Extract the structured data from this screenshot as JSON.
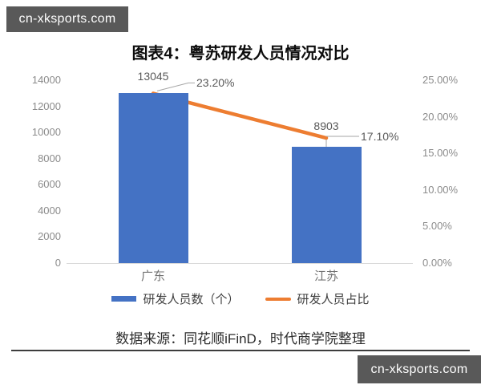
{
  "watermark_top": "cn-xksports.com",
  "watermark_bottom": "cn-xksports.com",
  "title": "图表4：粤苏研发人员情况对比",
  "source_note": "数据来源：同花顺iFinD，时代商学院整理",
  "colors": {
    "bar": "#4472C4",
    "line": "#ED7D31",
    "watermark_bg": "#595959",
    "axis_line": "#D9D9D9",
    "leader_line": "#A6A6A6",
    "tick_text": "#8C8C8C",
    "data_label_text": "#595959"
  },
  "legend": [
    {
      "label": "研发人员数（个）",
      "marker": "bar",
      "color": "#4472C4"
    },
    {
      "label": "研发人员占比",
      "marker": "line",
      "color": "#ED7D31"
    }
  ],
  "chart_data": {
    "type": "bar",
    "subtype": "bar+line combo, dual axis",
    "title": "图表4：粤苏研发人员情况对比",
    "categories": [
      "广东",
      "江苏"
    ],
    "series": [
      {
        "name": "研发人员数（个）",
        "type": "bar",
        "axis": "left",
        "values": [
          13045,
          8903
        ],
        "labels": [
          "13045",
          "8903"
        ]
      },
      {
        "name": "研发人员占比",
        "type": "line",
        "axis": "right",
        "values": [
          23.2,
          17.1
        ],
        "labels": [
          "23.20%",
          "17.10%"
        ]
      }
    ],
    "left_axis": {
      "min": 0,
      "max": 14000,
      "ticks": [
        "0",
        "2000",
        "4000",
        "6000",
        "8000",
        "10000",
        "12000",
        "14000"
      ]
    },
    "right_axis": {
      "min": 0,
      "max": 25,
      "ticks": [
        "0.00%",
        "5.00%",
        "10.00%",
        "15.00%",
        "20.00%",
        "25.00%"
      ]
    },
    "gridlines": false,
    "legend_position": "bottom"
  }
}
